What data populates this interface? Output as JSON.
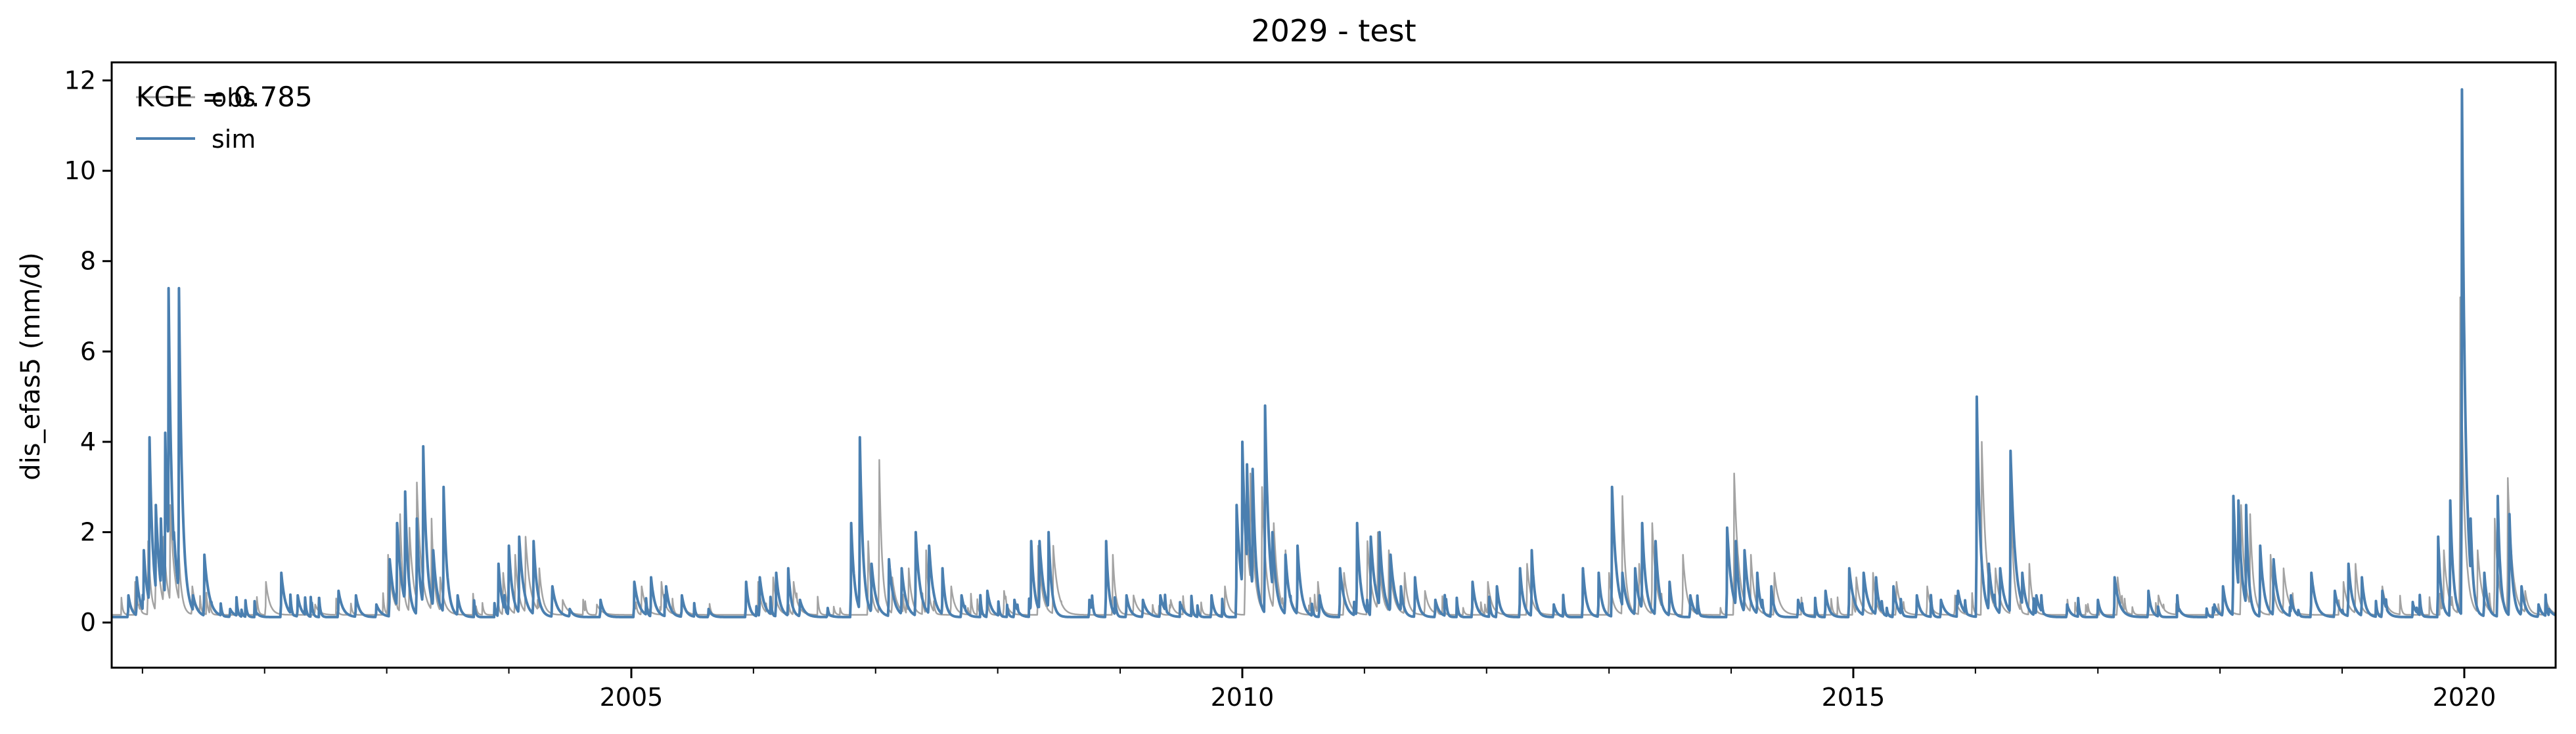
{
  "chart_data": {
    "type": "line",
    "title": "2029 - test",
    "xlabel": "",
    "ylabel": "dis_efas5 (mm/d)",
    "xlim": [
      "2000-10-01",
      "2020-09-30"
    ],
    "ylim": [
      -1,
      12.4
    ],
    "x_ticks": [
      "2005",
      "2010",
      "2015",
      "2020"
    ],
    "y_ticks": [
      0,
      2,
      4,
      6,
      8,
      10,
      12
    ],
    "annotation": "KGE = 0.785",
    "legend": {
      "placement": "top-left",
      "entries": [
        "obs",
        "sim"
      ]
    },
    "grid": false,
    "colors": {
      "obs": "#999999",
      "sim": "#4a7fb0"
    },
    "baseflow": 0.12,
    "series": [
      {
        "name": "obs",
        "peaks": [
          [
            "2000-12-10",
            0.9
          ],
          [
            "2001-01-18",
            1.8
          ],
          [
            "2001-02-10",
            2.4
          ],
          [
            "2001-03-05",
            1.9
          ],
          [
            "2001-03-25",
            2.6
          ],
          [
            "2001-04-20",
            1.5
          ],
          [
            "2001-05-30",
            0.8
          ],
          [
            "2002-01-05",
            0.9
          ],
          [
            "2002-06-01",
            0.4
          ],
          [
            "2003-01-05",
            1.5
          ],
          [
            "2003-02-10",
            2.4
          ],
          [
            "2003-03-10",
            2.1
          ],
          [
            "2003-04-01",
            3.1
          ],
          [
            "2003-05-15",
            2.3
          ],
          [
            "2003-06-10",
            1.0
          ],
          [
            "2003-12-15",
            1.1
          ],
          [
            "2004-01-20",
            1.5
          ],
          [
            "2004-02-20",
            1.9
          ],
          [
            "2004-04-01",
            1.2
          ],
          [
            "2004-06-10",
            0.5
          ],
          [
            "2004-09-20",
            0.4
          ],
          [
            "2005-02-01",
            0.8
          ],
          [
            "2005-04-01",
            0.9
          ],
          [
            "2005-06-01",
            0.5
          ],
          [
            "2006-01-15",
            0.9
          ],
          [
            "2006-03-01",
            1.0
          ],
          [
            "2006-05-01",
            0.9
          ],
          [
            "2006-12-10",
            1.8
          ],
          [
            "2007-01-12",
            3.6
          ],
          [
            "2007-02-20",
            1.0
          ],
          [
            "2007-04-10",
            1.2
          ],
          [
            "2007-06-01",
            1.6
          ],
          [
            "2007-08-15",
            0.8
          ],
          [
            "2008-01-20",
            0.7
          ],
          [
            "2008-05-01",
            1.7
          ],
          [
            "2008-06-15",
            1.7
          ],
          [
            "2008-12-10",
            1.5
          ],
          [
            "2009-02-10",
            0.6
          ],
          [
            "2009-06-01",
            0.5
          ],
          [
            "2009-11-10",
            0.8
          ],
          [
            "2010-01-10",
            2.6
          ],
          [
            "2010-01-25",
            3.3
          ],
          [
            "2010-03-01",
            3.0
          ],
          [
            "2010-04-05",
            2.2
          ],
          [
            "2010-05-10",
            1.6
          ],
          [
            "2010-08-15",
            0.9
          ],
          [
            "2010-11-01",
            1.1
          ],
          [
            "2011-01-10",
            1.8
          ],
          [
            "2011-02-10",
            2.0
          ],
          [
            "2011-03-15",
            1.6
          ],
          [
            "2011-05-01",
            1.1
          ],
          [
            "2011-07-01",
            0.7
          ],
          [
            "2012-01-05",
            0.9
          ],
          [
            "2012-05-01",
            1.3
          ],
          [
            "2013-01-01",
            1.1
          ],
          [
            "2013-02-10",
            2.8
          ],
          [
            "2013-04-01",
            1.3
          ],
          [
            "2013-05-10",
            2.2
          ],
          [
            "2013-08-10",
            1.5
          ],
          [
            "2014-01-10",
            3.3
          ],
          [
            "2014-03-01",
            1.5
          ],
          [
            "2014-05-10",
            1.1
          ],
          [
            "2015-01-10",
            1.0
          ],
          [
            "2015-03-01",
            1.1
          ],
          [
            "2015-05-10",
            0.9
          ],
          [
            "2015-08-10",
            0.8
          ],
          [
            "2015-11-01",
            0.6
          ],
          [
            "2016-01-20",
            4.0
          ],
          [
            "2016-03-01",
            1.2
          ],
          [
            "2016-04-15",
            3.0
          ],
          [
            "2016-06-10",
            1.3
          ],
          [
            "2017-03-01",
            1.0
          ],
          [
            "2017-07-01",
            0.6
          ],
          [
            "2018-01-10",
            0.7
          ],
          [
            "2018-03-05",
            2.6
          ],
          [
            "2018-04-01",
            2.4
          ],
          [
            "2018-06-01",
            1.5
          ],
          [
            "2018-07-10",
            1.2
          ],
          [
            "2019-01-05",
            0.9
          ],
          [
            "2019-02-10",
            1.3
          ],
          [
            "2019-05-01",
            0.8
          ],
          [
            "2019-11-01",
            1.6
          ],
          [
            "2019-12-20",
            7.2
          ],
          [
            "2020-02-10",
            1.6
          ],
          [
            "2020-04-01",
            2.3
          ],
          [
            "2020-05-10",
            3.2
          ],
          [
            "2020-07-01",
            0.7
          ],
          [
            "2020-09-01",
            0.5
          ]
        ]
      },
      {
        "name": "sim",
        "peaks": [
          [
            "2000-11-20",
            0.6
          ],
          [
            "2000-12-15",
            1.0
          ],
          [
            "2001-01-05",
            1.6
          ],
          [
            "2001-01-22",
            4.1
          ],
          [
            "2001-02-10",
            2.6
          ],
          [
            "2001-02-25",
            2.3
          ],
          [
            "2001-03-10",
            4.2
          ],
          [
            "2001-03-20",
            7.4
          ],
          [
            "2001-04-05",
            2.0
          ],
          [
            "2001-04-20",
            7.4
          ],
          [
            "2001-05-10",
            1.2
          ],
          [
            "2001-06-01",
            0.6
          ],
          [
            "2001-07-05",
            1.5
          ],
          [
            "2001-09-20",
            0.3
          ],
          [
            "2001-12-10",
            0.2
          ],
          [
            "2002-02-20",
            1.1
          ],
          [
            "2002-04-10",
            0.6
          ],
          [
            "2002-08-10",
            0.7
          ],
          [
            "2002-10-01",
            0.6
          ],
          [
            "2002-12-01",
            0.4
          ],
          [
            "2003-01-10",
            1.4
          ],
          [
            "2003-02-01",
            2.2
          ],
          [
            "2003-02-25",
            2.9
          ],
          [
            "2003-04-01",
            2.3
          ],
          [
            "2003-04-20",
            3.9
          ],
          [
            "2003-05-20",
            1.6
          ],
          [
            "2003-06-20",
            3.0
          ],
          [
            "2003-08-01",
            0.6
          ],
          [
            "2003-12-01",
            1.3
          ],
          [
            "2004-01-01",
            1.7
          ],
          [
            "2004-02-01",
            1.9
          ],
          [
            "2004-03-15",
            1.8
          ],
          [
            "2004-05-10",
            0.8
          ],
          [
            "2004-07-01",
            0.3
          ],
          [
            "2004-10-01",
            0.5
          ],
          [
            "2005-01-10",
            0.9
          ],
          [
            "2005-03-01",
            1.0
          ],
          [
            "2005-04-15",
            0.8
          ],
          [
            "2005-06-01",
            0.6
          ],
          [
            "2005-08-20",
            0.3
          ],
          [
            "2005-12-10",
            0.9
          ],
          [
            "2006-01-20",
            1.0
          ],
          [
            "2006-03-10",
            1.1
          ],
          [
            "2006-04-15",
            1.2
          ],
          [
            "2006-05-20",
            0.5
          ],
          [
            "2006-08-10",
            0.2
          ],
          [
            "2006-10-20",
            2.2
          ],
          [
            "2006-11-15",
            4.1
          ],
          [
            "2006-12-20",
            1.3
          ],
          [
            "2007-02-10",
            1.4
          ],
          [
            "2007-03-20",
            1.2
          ],
          [
            "2007-05-01",
            2.0
          ],
          [
            "2007-06-10",
            1.7
          ],
          [
            "2007-07-20",
            1.2
          ],
          [
            "2007-09-15",
            0.6
          ],
          [
            "2007-12-01",
            0.7
          ],
          [
            "2008-02-20",
            0.5
          ],
          [
            "2008-04-10",
            1.8
          ],
          [
            "2008-05-05",
            1.8
          ],
          [
            "2008-06-01",
            2.0
          ],
          [
            "2008-10-01",
            0.5
          ],
          [
            "2008-11-20",
            1.8
          ],
          [
            "2009-01-20",
            0.6
          ],
          [
            "2009-03-10",
            0.5
          ],
          [
            "2009-05-01",
            0.6
          ],
          [
            "2009-07-01",
            0.4
          ],
          [
            "2009-10-01",
            0.6
          ],
          [
            "2009-12-15",
            2.6
          ],
          [
            "2010-01-01",
            4.0
          ],
          [
            "2010-01-15",
            3.5
          ],
          [
            "2010-02-01",
            3.4
          ],
          [
            "2010-03-10",
            4.8
          ],
          [
            "2010-04-01",
            2.0
          ],
          [
            "2010-05-10",
            1.5
          ],
          [
            "2010-06-15",
            1.7
          ],
          [
            "2010-08-20",
            0.6
          ],
          [
            "2010-10-20",
            1.2
          ],
          [
            "2010-12-10",
            2.2
          ],
          [
            "2011-01-20",
            1.9
          ],
          [
            "2011-02-15",
            2.0
          ],
          [
            "2011-03-20",
            1.5
          ],
          [
            "2011-04-20",
            0.8
          ],
          [
            "2011-06-01",
            1.0
          ],
          [
            "2011-08-01",
            0.5
          ],
          [
            "2011-11-20",
            0.9
          ],
          [
            "2012-02-01",
            0.8
          ],
          [
            "2012-04-10",
            1.2
          ],
          [
            "2012-05-15",
            1.6
          ],
          [
            "2012-07-20",
            0.4
          ],
          [
            "2012-10-15",
            1.2
          ],
          [
            "2012-12-01",
            1.1
          ],
          [
            "2013-01-10",
            3.0
          ],
          [
            "2013-02-10",
            1.1
          ],
          [
            "2013-03-20",
            1.2
          ],
          [
            "2013-04-10",
            2.2
          ],
          [
            "2013-05-20",
            1.8
          ],
          [
            "2013-07-01",
            0.9
          ],
          [
            "2013-09-01",
            0.6
          ],
          [
            "2013-12-20",
            2.1
          ],
          [
            "2014-01-15",
            1.8
          ],
          [
            "2014-02-10",
            1.6
          ],
          [
            "2014-03-20",
            1.1
          ],
          [
            "2014-05-01",
            0.8
          ],
          [
            "2014-07-20",
            0.5
          ],
          [
            "2014-10-10",
            0.7
          ],
          [
            "2014-12-20",
            1.2
          ],
          [
            "2015-02-01",
            1.1
          ],
          [
            "2015-03-10",
            1.0
          ],
          [
            "2015-05-01",
            0.8
          ],
          [
            "2015-07-10",
            0.6
          ],
          [
            "2015-09-20",
            0.5
          ],
          [
            "2015-11-10",
            0.7
          ],
          [
            "2016-01-05",
            5.0
          ],
          [
            "2016-02-10",
            1.3
          ],
          [
            "2016-03-15",
            1.2
          ],
          [
            "2016-04-15",
            3.8
          ],
          [
            "2016-05-20",
            1.1
          ],
          [
            "2016-07-01",
            0.6
          ],
          [
            "2016-10-01",
            0.4
          ],
          [
            "2017-01-01",
            0.5
          ],
          [
            "2017-02-20",
            1.0
          ],
          [
            "2017-06-01",
            0.7
          ],
          [
            "2017-09-01",
            0.3
          ],
          [
            "2017-12-15",
            0.4
          ],
          [
            "2018-01-10",
            0.8
          ],
          [
            "2018-02-10",
            2.8
          ],
          [
            "2018-02-25",
            2.7
          ],
          [
            "2018-03-20",
            2.6
          ],
          [
            "2018-05-01",
            1.7
          ],
          [
            "2018-06-10",
            1.4
          ],
          [
            "2018-08-01",
            0.6
          ],
          [
            "2018-10-01",
            1.1
          ],
          [
            "2018-12-10",
            0.7
          ],
          [
            "2019-01-20",
            1.3
          ],
          [
            "2019-03-01",
            1.0
          ],
          [
            "2019-05-01",
            0.7
          ],
          [
            "2019-08-01",
            0.4
          ],
          [
            "2019-10-15",
            1.9
          ],
          [
            "2019-11-20",
            2.7
          ],
          [
            "2019-12-25",
            11.8
          ],
          [
            "2020-01-20",
            2.3
          ],
          [
            "2020-03-01",
            1.1
          ],
          [
            "2020-04-10",
            2.8
          ],
          [
            "2020-05-15",
            2.4
          ],
          [
            "2020-06-20",
            0.8
          ],
          [
            "2020-08-10",
            0.4
          ],
          [
            "2020-09-10",
            0.3
          ]
        ]
      }
    ]
  }
}
